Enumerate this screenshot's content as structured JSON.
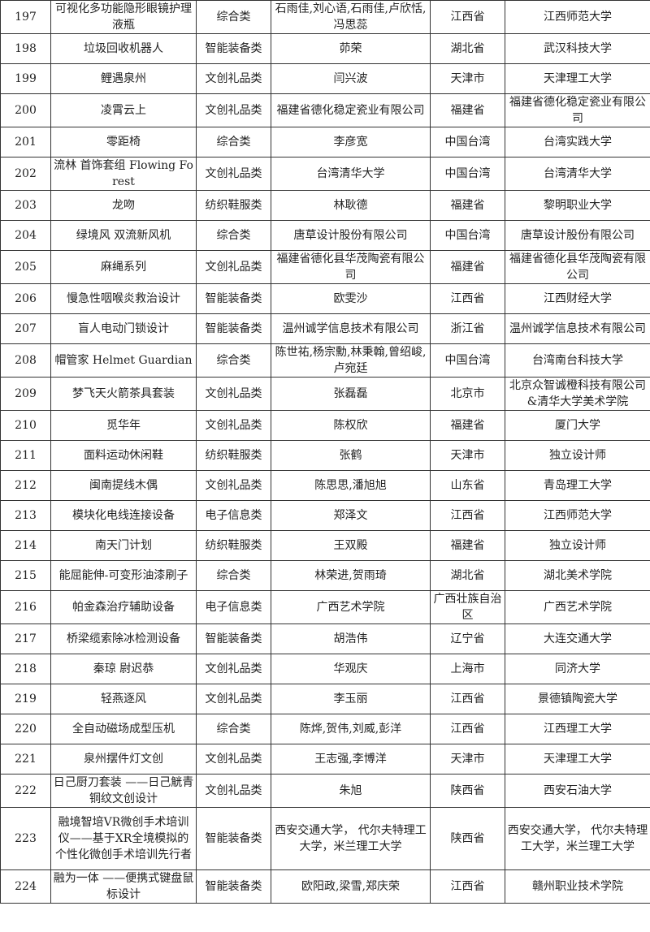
{
  "rows": [
    {
      "no": "197",
      "name": "可视化多功能隐形眼镜护理液瓶",
      "category": "综合类",
      "author": "石雨佳,刘心语,石雨佳,卢欣恬,冯思蕊",
      "region": "江西省",
      "unit": "江西师范大学"
    },
    {
      "no": "198",
      "name": "垃圾回收机器人",
      "category": "智能装备类",
      "author": "茆荣",
      "region": "湖北省",
      "unit": "武汉科技大学"
    },
    {
      "no": "199",
      "name": "鲤遇泉州",
      "category": "文创礼品类",
      "author": "闫兴波",
      "region": "天津市",
      "unit": "天津理工大学"
    },
    {
      "no": "200",
      "name": "凌霄云上",
      "category": "文创礼品类",
      "author": "福建省德化稳定瓷业有限公司",
      "region": "福建省",
      "unit": "福建省德化稳定瓷业有限公司"
    },
    {
      "no": "201",
      "name": "零距椅",
      "category": "综合类",
      "author": "李彦宽",
      "region": "中国台湾",
      "unit": "台湾实践大学"
    },
    {
      "no": "202",
      "name": "流林 首饰套组  Flowing Forest",
      "category": "文创礼品类",
      "author": "台湾清华大学",
      "region": "中国台湾",
      "unit": "台湾清华大学"
    },
    {
      "no": "203",
      "name": "龙吻",
      "category": "纺织鞋服类",
      "author": "林耿德",
      "region": "福建省",
      "unit": "黎明职业大学"
    },
    {
      "no": "204",
      "name": "绿境风 双流新风机",
      "category": "综合类",
      "author": "唐草设计股份有限公司",
      "region": "中国台湾",
      "unit": "唐草设计股份有限公司"
    },
    {
      "no": "205",
      "name": "麻绳系列",
      "category": "文创礼品类",
      "author": "福建省德化县华茂陶瓷有限公司",
      "region": "福建省",
      "unit": "福建省德化县华茂陶瓷有限公司"
    },
    {
      "no": "206",
      "name": "慢急性咽喉炎救治设计",
      "category": "智能装备类",
      "author": "欧雯沙",
      "region": "江西省",
      "unit": "江西财经大学"
    },
    {
      "no": "207",
      "name": "盲人电动门锁设计",
      "category": "智能装备类",
      "author": "温州诚学信息技术有限公司",
      "region": "浙江省",
      "unit": "温州诚学信息技术有限公司"
    },
    {
      "no": "208",
      "name": "帽管家 Helmet Guardian",
      "category": "综合类",
      "author": "陈世祐,杨宗勳,林秉翰,曾绍峻,卢宛廷",
      "region": "中国台湾",
      "unit": "台湾南台科技大学"
    },
    {
      "no": "209",
      "name": "梦飞天火箭茶具套装",
      "category": "文创礼品类",
      "author": "张磊磊",
      "region": "北京市",
      "unit": "北京众智诚橙科技有限公司&清华大学美术学院"
    },
    {
      "no": "210",
      "name": "觅华年",
      "category": "文创礼品类",
      "author": "陈权欣",
      "region": "福建省",
      "unit": "厦门大学"
    },
    {
      "no": "211",
      "name": "面料运动休闲鞋",
      "category": "纺织鞋服类",
      "author": "张鹤",
      "region": "天津市",
      "unit": "独立设计师"
    },
    {
      "no": "212",
      "name": "闽南提线木偶",
      "category": "文创礼品类",
      "author": "陈思思,潘旭旭",
      "region": "山东省",
      "unit": "青岛理工大学"
    },
    {
      "no": "213",
      "name": "模块化电线连接设备",
      "category": "电子信息类",
      "author": "郑泽文",
      "region": "江西省",
      "unit": "江西师范大学"
    },
    {
      "no": "214",
      "name": "南天门计划",
      "category": "纺织鞋服类",
      "author": "王双殿",
      "region": "福建省",
      "unit": "独立设计师"
    },
    {
      "no": "215",
      "name": "能屈能伸-可变形油漆刷子",
      "category": "综合类",
      "author": "林荣进,贺雨琦",
      "region": "湖北省",
      "unit": "湖北美术学院"
    },
    {
      "no": "216",
      "name": "帕金森治疗辅助设备",
      "category": "电子信息类",
      "author": "广西艺术学院",
      "region": "广西壮族自治区",
      "unit": "广西艺术学院"
    },
    {
      "no": "217",
      "name": "桥梁缆索除冰检测设备",
      "category": "智能装备类",
      "author": "胡浩伟",
      "region": "辽宁省",
      "unit": "大连交通大学"
    },
    {
      "no": "218",
      "name": "秦琼 尉迟恭",
      "category": "文创礼品类",
      "author": "华观庆",
      "region": "上海市",
      "unit": "同济大学"
    },
    {
      "no": "219",
      "name": "轻燕逐风",
      "category": "文创礼品类",
      "author": "李玉丽",
      "region": "江西省",
      "unit": "景德镇陶瓷大学"
    },
    {
      "no": "220",
      "name": "全自动磁场成型压机",
      "category": "综合类",
      "author": "陈烨,贺伟,刘威,彭洋",
      "region": "江西省",
      "unit": "江西理工大学"
    },
    {
      "no": "221",
      "name": "泉州摆件灯文创",
      "category": "文创礼品类",
      "author": "王志强,李博洋",
      "region": "天津市",
      "unit": "天津理工大学"
    },
    {
      "no": "222",
      "name": "日己厨刀套装 ——日己觥青铜纹文创设计",
      "category": "文创礼品类",
      "author": "朱旭",
      "region": "陕西省",
      "unit": "西安石油大学"
    },
    {
      "no": "223",
      "name": "融境智培VR微创手术培训仪——基于XR全境模拟的个性化微创手术培训先行者",
      "category": "智能装备类",
      "author": "西安交通大学， 代尔夫特理工大学，米兰理工大学",
      "region": "陕西省",
      "unit": "西安交通大学， 代尔夫特理工大学，米兰理工大学"
    },
    {
      "no": "224",
      "name": "融为一体 ——便携式键盘鼠标设计",
      "category": "智能装备类",
      "author": "欧阳政,梁雪,郑庆荣",
      "region": "江西省",
      "unit": "赣州职业技术学院"
    }
  ]
}
